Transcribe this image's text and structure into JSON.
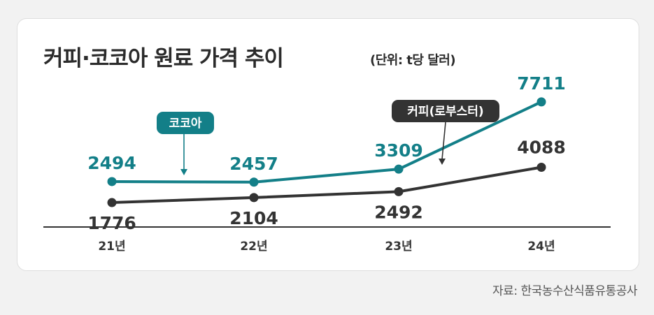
{
  "title": "커피·코코아 원료 가격 추이",
  "unit": "(단위: t당 달러)",
  "source": "자료: 한국농수산식품유통공사",
  "colors": {
    "cocoa": "#137f88",
    "coffee": "#333333",
    "axis": "#333333"
  },
  "chart_data": {
    "type": "line",
    "categories": [
      "21년",
      "22년",
      "23년",
      "24년"
    ],
    "series": [
      {
        "name": "코코아",
        "values": [
          2494,
          2457,
          3309,
          7711
        ]
      },
      {
        "name": "커피(로부스터)",
        "values": [
          1776,
          2104,
          2492,
          4088
        ]
      }
    ],
    "annotations": [
      {
        "series": 0,
        "text": "코코아"
      },
      {
        "series": 1,
        "text": "커피(로부스터)"
      }
    ],
    "grid": false
  }
}
